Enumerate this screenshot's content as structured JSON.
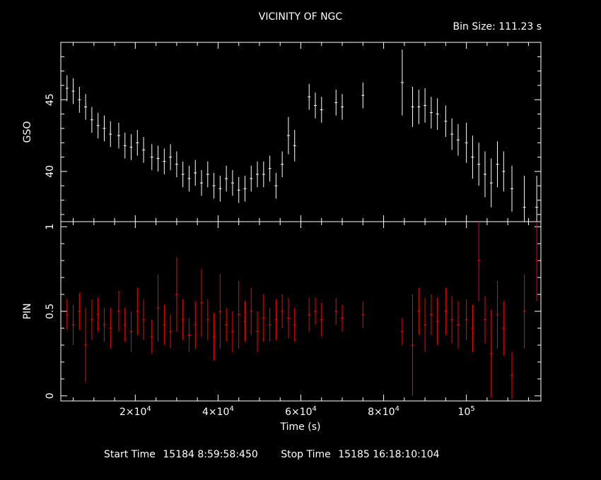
{
  "header": {
    "title": "VICINITY OF NGC",
    "bin_size": "Bin Size: 111.23 s"
  },
  "footer": {
    "start_label": "Start Time",
    "start_value": "15184  8:59:58:450",
    "stop_label": "Stop Time",
    "stop_value": "15185 16:18:10:104"
  },
  "colors": {
    "gso": "#ffffff",
    "pin": "#ff0000",
    "axes": "#ffffff",
    "background": "#000000"
  },
  "chart_data": [
    {
      "type": "scatter",
      "panel": "top",
      "ylabel": "GSO",
      "ylim": [
        36.5,
        49
      ],
      "yticks": [
        40,
        45
      ],
      "xlim": [
        2000,
        118000
      ],
      "series": [
        {
          "x": [
            3500,
            5000,
            6500,
            8000,
            9500,
            11000,
            12500,
            14000,
            16000,
            17500,
            19000,
            20500,
            22000,
            24000,
            25500,
            27000,
            28500,
            30000,
            31500,
            33000,
            34500,
            36000,
            37500,
            39000,
            40500,
            42000,
            43500,
            45000,
            46500,
            48000,
            49500,
            51000,
            52500,
            54000,
            55500,
            57000,
            58500,
            62000,
            63500,
            65000,
            68500,
            70000,
            75000,
            84500,
            87000,
            88500,
            90000,
            91500,
            93000,
            95000,
            96500,
            98000,
            100000,
            101500,
            103000,
            104500,
            106000,
            107500,
            109000,
            111000,
            114000,
            117000
          ],
          "y": [
            45.8,
            45.6,
            45,
            44.5,
            43.6,
            43.2,
            43,
            42.6,
            42.5,
            41.8,
            41.7,
            42,
            41.5,
            41,
            40.9,
            40.7,
            41,
            40.5,
            39.8,
            39.5,
            39.9,
            39.2,
            39.8,
            39,
            38.8,
            39.5,
            39.2,
            38.7,
            38.8,
            39.5,
            39.8,
            39.8,
            40.2,
            39,
            40.5,
            42.5,
            41.8,
            45.2,
            44.6,
            44.3,
            44.8,
            44.5,
            45.3,
            46.2,
            44.5,
            44.5,
            44.6,
            44.1,
            44,
            43.5,
            42.6,
            42.2,
            42,
            41,
            40.5,
            39.8,
            39.2,
            40.5,
            40,
            38.8,
            37.5,
            37.5
          ],
          "err": [
            0.9,
            0.9,
            0.9,
            0.9,
            0.9,
            0.9,
            0.9,
            0.9,
            0.9,
            0.9,
            0.9,
            0.9,
            0.9,
            0.9,
            0.9,
            0.9,
            0.9,
            0.9,
            0.9,
            0.9,
            0.9,
            0.9,
            0.9,
            0.9,
            0.9,
            0.9,
            0.9,
            0.9,
            0.9,
            0.9,
            0.9,
            0.9,
            0.9,
            0.9,
            0.9,
            1.3,
            1.1,
            0.9,
            0.9,
            0.9,
            0.9,
            0.9,
            0.9,
            2.3,
            1.4,
            1.2,
            1.2,
            1.1,
            1.1,
            1.1,
            1.1,
            1.1,
            1.4,
            1.5,
            1.5,
            1.6,
            1.7,
            1.6,
            1.4,
            1.6,
            2.2,
            2.2
          ]
        }
      ]
    },
    {
      "type": "scatter",
      "panel": "bottom",
      "ylabel": "PIN",
      "xlabel": "Time (s)",
      "ylim": [
        -0.03,
        1.03
      ],
      "yticks": [
        0,
        0.5,
        1
      ],
      "ytick_labels": [
        "0",
        "0.5",
        "1"
      ],
      "xlim": [
        2000,
        118000
      ],
      "xticks": [
        20000,
        40000,
        60000,
        80000,
        100000
      ],
      "xtick_base": [
        "2×10",
        "4×10",
        "6×10",
        "8×10",
        "10"
      ],
      "xtick_exp": [
        "4",
        "4",
        "4",
        "4",
        "5"
      ],
      "series": [
        {
          "x": [
            3500,
            5000,
            6500,
            8000,
            9500,
            11000,
            12500,
            14000,
            16000,
            17500,
            19000,
            20500,
            22000,
            24000,
            25500,
            27000,
            28500,
            30000,
            31500,
            33000,
            34500,
            36000,
            37500,
            39000,
            40500,
            42000,
            43500,
            45000,
            46500,
            48000,
            49500,
            51000,
            52500,
            54000,
            55500,
            57000,
            58500,
            62000,
            63500,
            65000,
            68500,
            70000,
            75000,
            84500,
            87000,
            88500,
            90000,
            91500,
            93000,
            95000,
            96500,
            98000,
            100000,
            101500,
            103000,
            104500,
            106000,
            107500,
            109000,
            111000,
            114000,
            117000
          ],
          "y": [
            0.48,
            0.42,
            0.5,
            0.3,
            0.45,
            0.48,
            0.42,
            0.4,
            0.5,
            0.42,
            0.38,
            0.5,
            0.45,
            0.35,
            0.52,
            0.42,
            0.38,
            0.6,
            0.45,
            0.36,
            0.42,
            0.55,
            0.45,
            0.35,
            0.5,
            0.42,
            0.38,
            0.48,
            0.44,
            0.5,
            0.38,
            0.46,
            0.42,
            0.45,
            0.5,
            0.46,
            0.42,
            0.48,
            0.5,
            0.45,
            0.5,
            0.46,
            0.48,
            0.38,
            0.3,
            0.5,
            0.42,
            0.48,
            0.44,
            0.5,
            0.45,
            0.42,
            0.45,
            0.4,
            0.8,
            0.45,
            0.25,
            0.48,
            0.4,
            0.12,
            0.5,
            0.8
          ],
          "err": [
            0.09,
            0.12,
            0.11,
            0.22,
            0.12,
            0.1,
            0.1,
            0.12,
            0.12,
            0.1,
            0.12,
            0.14,
            0.12,
            0.1,
            0.2,
            0.12,
            0.1,
            0.22,
            0.12,
            0.1,
            0.14,
            0.2,
            0.12,
            0.14,
            0.22,
            0.1,
            0.12,
            0.2,
            0.12,
            0.14,
            0.12,
            0.14,
            0.1,
            0.12,
            0.1,
            0.12,
            0.1,
            0.1,
            0.08,
            0.1,
            0.08,
            0.08,
            0.08,
            0.08,
            0.3,
            0.14,
            0.16,
            0.12,
            0.14,
            0.14,
            0.14,
            0.14,
            0.12,
            0.14,
            0.24,
            0.14,
            0.26,
            0.2,
            0.16,
            0.14,
            0.22,
            0.24
          ]
        }
      ]
    }
  ]
}
